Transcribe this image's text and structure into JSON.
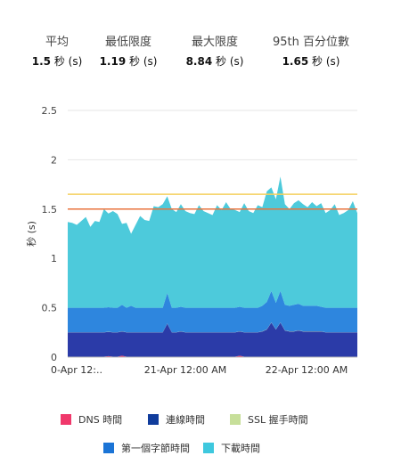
{
  "stats": [
    {
      "label": "平均",
      "value": "1.5",
      "unit": "秒 (s)"
    },
    {
      "label": "最低限度",
      "value": "1.19",
      "unit": "秒 (s)"
    },
    {
      "label": "最大限度",
      "value": "8.84",
      "unit": "秒 (s)"
    },
    {
      "label": "95th 百分位數",
      "value": "1.65",
      "unit": "秒 (s)"
    }
  ],
  "chart_data": {
    "type": "area",
    "stacked": true,
    "ylabel": "秒 (s)",
    "ylim": [
      0,
      2.5
    ],
    "yticks": [
      "0",
      "0.5",
      "1",
      "1.5",
      "2",
      "2.5"
    ],
    "xticks": [
      "0-Apr 12:..",
      "21-Apr 12:00 AM",
      "22-Apr 12:00 AM"
    ],
    "grid": true,
    "legend_position": "bottom",
    "series": [
      {
        "name": "DNS 時間",
        "color": "#f0386b",
        "values": [
          0.005,
          0.005,
          0.005,
          0.005,
          0.005,
          0.005,
          0.005,
          0.005,
          0.005,
          0.01,
          0.005,
          0.005,
          0.015,
          0.005,
          0.005,
          0.005,
          0.005,
          0.005,
          0.005,
          0.005,
          0.005,
          0.005,
          0.005,
          0.005,
          0.005,
          0.005,
          0.005,
          0.005,
          0.005,
          0.005,
          0.005,
          0.005,
          0.005,
          0.005,
          0.005,
          0.005,
          0.005,
          0.005,
          0.015,
          0.005,
          0.005,
          0.005,
          0.005,
          0.005,
          0.005,
          0.005,
          0.005,
          0.005,
          0.005,
          0.005,
          0.005,
          0.005,
          0.005,
          0.005,
          0.005,
          0.005,
          0.005,
          0.005,
          0.005,
          0.005,
          0.005,
          0.005,
          0.005,
          0.005,
          0.005
        ]
      },
      {
        "name": "連線時間",
        "color": "#2b3ba8",
        "values": [
          0.245,
          0.245,
          0.245,
          0.245,
          0.245,
          0.245,
          0.245,
          0.245,
          0.245,
          0.245,
          0.245,
          0.245,
          0.245,
          0.245,
          0.245,
          0.245,
          0.245,
          0.245,
          0.245,
          0.245,
          0.245,
          0.245,
          0.335,
          0.245,
          0.245,
          0.255,
          0.245,
          0.245,
          0.245,
          0.245,
          0.245,
          0.245,
          0.245,
          0.245,
          0.245,
          0.245,
          0.245,
          0.245,
          0.245,
          0.245,
          0.245,
          0.245,
          0.245,
          0.255,
          0.275,
          0.345,
          0.275,
          0.345,
          0.265,
          0.255,
          0.255,
          0.265,
          0.255,
          0.255,
          0.255,
          0.255,
          0.255,
          0.245,
          0.245,
          0.245,
          0.245,
          0.245,
          0.245,
          0.245,
          0.245
        ]
      },
      {
        "name": "SSL 握手時間",
        "color": "#c7df9a",
        "values": [
          0.002,
          0.002,
          0.002,
          0.002,
          0.002,
          0.002,
          0.002,
          0.002,
          0.002,
          0.002,
          0.002,
          0.002,
          0.002,
          0.002,
          0.002,
          0.002,
          0.002,
          0.002,
          0.002,
          0.002,
          0.002,
          0.002,
          0.002,
          0.002,
          0.002,
          0.002,
          0.002,
          0.002,
          0.002,
          0.002,
          0.002,
          0.002,
          0.002,
          0.002,
          0.002,
          0.002,
          0.002,
          0.002,
          0.002,
          0.002,
          0.002,
          0.002,
          0.002,
          0.002,
          0.002,
          0.002,
          0.002,
          0.002,
          0.002,
          0.002,
          0.002,
          0.002,
          0.002,
          0.002,
          0.002,
          0.002,
          0.002,
          0.002,
          0.002,
          0.002,
          0.002,
          0.002,
          0.002,
          0.002,
          0.002
        ]
      },
      {
        "name": "第一個字節時間",
        "color": "#2e86de",
        "values": [
          0.248,
          0.248,
          0.248,
          0.248,
          0.248,
          0.248,
          0.248,
          0.248,
          0.248,
          0.248,
          0.248,
          0.248,
          0.268,
          0.248,
          0.268,
          0.248,
          0.248,
          0.248,
          0.248,
          0.248,
          0.248,
          0.248,
          0.308,
          0.248,
          0.248,
          0.248,
          0.248,
          0.248,
          0.248,
          0.248,
          0.248,
          0.248,
          0.248,
          0.248,
          0.248,
          0.248,
          0.248,
          0.248,
          0.248,
          0.248,
          0.248,
          0.248,
          0.248,
          0.258,
          0.278,
          0.318,
          0.268,
          0.318,
          0.258,
          0.258,
          0.268,
          0.268,
          0.258,
          0.258,
          0.258,
          0.258,
          0.248,
          0.248,
          0.248,
          0.248,
          0.248,
          0.248,
          0.248,
          0.248,
          0.248
        ]
      },
      {
        "name": "下載時間",
        "color": "#4dcadb",
        "values": [
          0.87,
          0.86,
          0.84,
          0.88,
          0.92,
          0.82,
          0.88,
          0.87,
          1.0,
          0.95,
          0.98,
          0.95,
          0.82,
          0.86,
          0.73,
          0.84,
          0.93,
          0.89,
          0.88,
          1.03,
          1.02,
          1.05,
          0.98,
          1.0,
          0.97,
          1.04,
          0.98,
          0.96,
          0.95,
          1.04,
          0.98,
          0.96,
          0.94,
          1.04,
          0.99,
          1.07,
          1.0,
          0.99,
          0.96,
          1.06,
          0.98,
          0.96,
          1.04,
          1.0,
          1.12,
          1.05,
          1.05,
          1.16,
          1.02,
          0.98,
          1.03,
          1.05,
          1.03,
          1.0,
          1.05,
          1.01,
          1.05,
          0.96,
          0.99,
          1.05,
          0.94,
          0.96,
          0.99,
          1.08,
          0.96
        ]
      }
    ],
    "lines": [
      {
        "name": "95th percentile",
        "value": 1.65,
        "color": "#f4d15e"
      },
      {
        "name": "average",
        "value": 1.5,
        "color": "#e8733c"
      }
    ]
  },
  "legend": [
    {
      "label": "DNS 時間",
      "color": "#f0386b"
    },
    {
      "label": "連線時間",
      "color": "#103c9c"
    },
    {
      "label": "SSL 握手時間",
      "color": "#c7df9a"
    },
    {
      "label": "第一個字節時間",
      "color": "#1b74d6"
    },
    {
      "label": "下載時間",
      "color": "#3ec8de"
    }
  ]
}
